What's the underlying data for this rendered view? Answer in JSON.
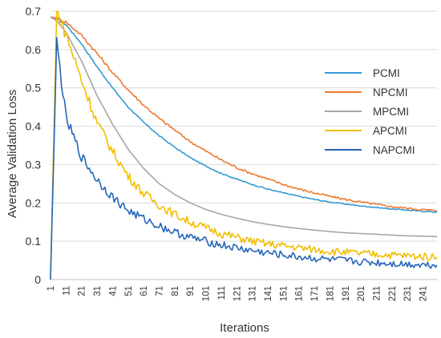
{
  "chart_data": {
    "type": "line",
    "title": "",
    "xlabel": "Iterations",
    "ylabel": "Average Validation Loss",
    "ylim": [
      0,
      0.7
    ],
    "yticks": [
      "0",
      "0.1",
      "0.2",
      "0.3",
      "0.4",
      "0.5",
      "0.6",
      "0.7"
    ],
    "xlim": [
      1,
      250
    ],
    "xticks": [
      "1",
      "11",
      "21",
      "31",
      "41",
      "51",
      "61",
      "71",
      "81",
      "91",
      "101",
      "111",
      "121",
      "131",
      "141",
      "151",
      "161",
      "171",
      "181",
      "191",
      "201",
      "211",
      "221",
      "231",
      "241"
    ],
    "grid": "horizontal",
    "legend_position": "right",
    "x": [
      1,
      5,
      11,
      21,
      31,
      41,
      51,
      61,
      71,
      81,
      91,
      101,
      111,
      121,
      131,
      141,
      151,
      161,
      171,
      181,
      191,
      201,
      211,
      221,
      231,
      241,
      250
    ],
    "series": [
      {
        "name": "PCMI",
        "color": "#3399D4",
        "values": [
          0.685,
          0.68,
          0.665,
          0.615,
          0.555,
          0.5,
          0.45,
          0.41,
          0.375,
          0.345,
          0.318,
          0.296,
          0.277,
          0.262,
          0.248,
          0.236,
          0.226,
          0.217,
          0.209,
          0.202,
          0.197,
          0.192,
          0.188,
          0.184,
          0.181,
          0.178,
          0.176
        ]
      },
      {
        "name": "NPCMI",
        "color": "#EE7A30",
        "values": [
          0.685,
          0.682,
          0.672,
          0.637,
          0.59,
          0.54,
          0.495,
          0.455,
          0.42,
          0.39,
          0.36,
          0.335,
          0.312,
          0.292,
          0.276,
          0.262,
          0.248,
          0.236,
          0.226,
          0.217,
          0.209,
          0.202,
          0.196,
          0.19,
          0.186,
          0.182,
          0.18
        ]
      },
      {
        "name": "MPCMI",
        "color": "#A6A6A6",
        "values": [
          0.685,
          0.675,
          0.645,
          0.57,
          0.48,
          0.405,
          0.34,
          0.29,
          0.25,
          0.222,
          0.2,
          0.183,
          0.17,
          0.16,
          0.151,
          0.144,
          0.138,
          0.133,
          0.129,
          0.125,
          0.122,
          0.12,
          0.118,
          0.116,
          0.114,
          0.113,
          0.112
        ]
      },
      {
        "name": "APCMI",
        "color": "#F2BE00",
        "values": [
          0.0,
          0.7,
          0.64,
          0.52,
          0.41,
          0.335,
          0.27,
          0.225,
          0.195,
          0.17,
          0.15,
          0.135,
          0.12,
          0.11,
          0.1,
          0.093,
          0.088,
          0.083,
          0.078,
          0.074,
          0.071,
          0.068,
          0.066,
          0.064,
          0.062,
          0.06,
          0.059
        ]
      },
      {
        "name": "NAPCMI",
        "color": "#2566B8",
        "values": [
          0.0,
          0.62,
          0.42,
          0.32,
          0.26,
          0.215,
          0.18,
          0.158,
          0.14,
          0.123,
          0.11,
          0.1,
          0.09,
          0.082,
          0.075,
          0.069,
          0.064,
          0.059,
          0.055,
          0.052,
          0.049,
          0.046,
          0.044,
          0.042,
          0.04,
          0.039,
          0.038
        ]
      }
    ]
  }
}
